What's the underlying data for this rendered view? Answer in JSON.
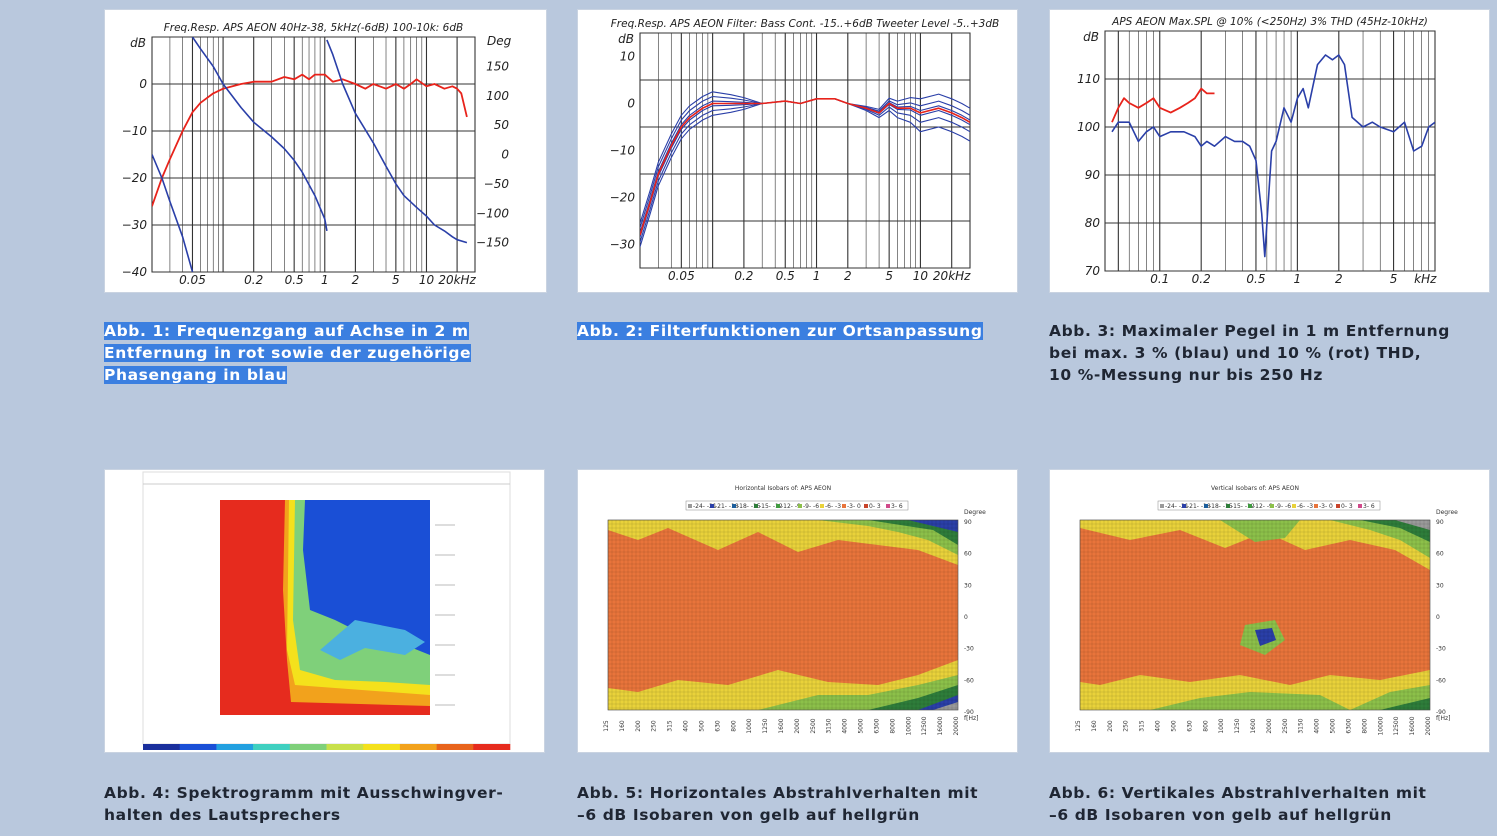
{
  "captions": {
    "fig1": "Abb. 1: Frequenzgang auf Achse in 2 m\nEntfernung in rot sowie der zugehörige\nPhasengang in blau",
    "fig2": "Abb. 2: Filterfunktionen zur Ortsanpassung",
    "fig3": "Abb. 3: Maximaler Pegel in 1 m Entfernung\nbei max. 3 % (blau) und 10 % (rot) THD,\n10 %-Messung nur bis 250 Hz",
    "fig4": "Abb. 4: Spektrogramm mit Ausschwingver-\nhalten des Lautsprechers",
    "fig5": "Abb. 5: Horizontales Abstrahlverhalten mit\n–6 dB Isobaren von gelb auf hellgrün",
    "fig6": "Abb. 6: Vertikales Abstrahlverhalten mit\n–6 dB Isobaren von gelb auf hellgrün"
  },
  "colors": {
    "page_background": "#b9c8dd",
    "caption_highlight": "#3b7fe0",
    "curve_red": "#e8231b",
    "curve_blue": "#2a3fa8"
  },
  "chart_data": [
    {
      "id": "fig1",
      "type": "line",
      "title": "Freq.Resp. APS AEON 40Hz-38, 5kHz(-6dB) 100-10k: 6dB",
      "ylabel": "dB",
      "y2label": "Deg",
      "xscale": "log",
      "xlim": [
        0.02,
        30
      ],
      "ylim": [
        -40,
        10
      ],
      "y2lim": [
        -200,
        200
      ],
      "x_ticks": [
        {
          "v": 0.05,
          "label": "0.05"
        },
        {
          "v": 0.2,
          "label": "0.2"
        },
        {
          "v": 0.5,
          "label": "0.5"
        },
        {
          "v": 1,
          "label": "1"
        },
        {
          "v": 2,
          "label": "2"
        },
        {
          "v": 5,
          "label": "5"
        },
        {
          "v": 10,
          "label": "10"
        },
        {
          "v": 20,
          "label": "20kHz"
        }
      ],
      "y_ticks": [
        0,
        -10,
        -20,
        -30,
        -40
      ],
      "y2_ticks": [
        150,
        100,
        50,
        0,
        -50,
        -100,
        -150
      ],
      "grid": true,
      "series": [
        {
          "axis": "left",
          "color": "#e8231b",
          "x": [
            0.02,
            0.025,
            0.03,
            0.04,
            0.05,
            0.06,
            0.08,
            0.1,
            0.15,
            0.2,
            0.3,
            0.4,
            0.5,
            0.6,
            0.7,
            0.8,
            1,
            1.2,
            1.5,
            2,
            2.5,
            3,
            4,
            5,
            6,
            7,
            8,
            10,
            12,
            15,
            18,
            20,
            22,
            25
          ],
          "y": [
            -26,
            -20,
            -16,
            -10,
            -6,
            -4,
            -2,
            -1,
            0,
            0.5,
            0.5,
            1.5,
            1,
            2,
            1,
            2,
            2,
            0.5,
            1,
            0,
            -1,
            0,
            -1,
            0,
            -1,
            0,
            1,
            -0.5,
            0,
            -1,
            -0.5,
            -1,
            -2,
            -7
          ]
        },
        {
          "axis": "right",
          "color": "#2a3fa8",
          "x": [
            0.05,
            0.06,
            0.08,
            0.1,
            0.15,
            0.2,
            0.3,
            0.4,
            0.5,
            0.6,
            0.8,
            1,
            1.05
          ],
          "y": [
            200,
            180,
            150,
            120,
            80,
            55,
            30,
            10,
            -10,
            -30,
            -70,
            -110,
            -130
          ]
        },
        {
          "axis": "right",
          "color": "#2a3fa8",
          "x": [
            1.05,
            1.2,
            1.5,
            2,
            3,
            4,
            5,
            6,
            8,
            10,
            12,
            15,
            18,
            20,
            25
          ],
          "y": [
            195,
            170,
            120,
            70,
            20,
            -20,
            -50,
            -70,
            -90,
            -105,
            -120,
            -130,
            -140,
            -145,
            -150
          ]
        },
        {
          "axis": "right",
          "color": "#2a3fa8",
          "x": [
            0.02,
            0.025,
            0.03,
            0.04,
            0.05
          ],
          "y": [
            0,
            -40,
            -80,
            -140,
            -200
          ]
        }
      ]
    },
    {
      "id": "fig2",
      "type": "line",
      "title": "Freq.Resp. APS AEON Filter: Bass Cont. -15..+6dB Tweeter Level -5..+3dB",
      "ylabel": "dB",
      "xscale": "log",
      "xlim": [
        0.02,
        30
      ],
      "ylim": [
        -35,
        15
      ],
      "x_ticks": [
        {
          "v": 0.05,
          "label": "0.05"
        },
        {
          "v": 0.2,
          "label": "0.2"
        },
        {
          "v": 0.5,
          "label": "0.5"
        },
        {
          "v": 1,
          "label": "1"
        },
        {
          "v": 2,
          "label": "2"
        },
        {
          "v": 5,
          "label": "5"
        },
        {
          "v": 10,
          "label": "10"
        },
        {
          "v": 20,
          "label": "20kHz"
        }
      ],
      "y_ticks": [
        10,
        0,
        -10,
        -20,
        -30
      ],
      "grid": true,
      "base": {
        "x": [
          0.02,
          0.025,
          0.03,
          0.04,
          0.05,
          0.06,
          0.08,
          0.1,
          0.15,
          0.2,
          0.3,
          0.5,
          0.7,
          1,
          1.5,
          2,
          3,
          4,
          5,
          6,
          8,
          10,
          15,
          20,
          25,
          30
        ],
        "y": [
          -28,
          -21,
          -15,
          -9,
          -5,
          -3,
          -1,
          0,
          0,
          0,
          0,
          0.5,
          0,
          1,
          1,
          0,
          -1,
          -2,
          0,
          -1,
          -1,
          -2,
          -1,
          -2,
          -3,
          -4
        ]
      },
      "bass_offsets": [
        -2.5,
        -1.5,
        -0.5,
        0.5,
        1.5,
        2.5
      ],
      "treble_offsets": [
        3,
        1.5,
        0.5,
        -0.5,
        -2,
        -4,
        -5
      ],
      "series": [
        {
          "name": "",
          "color": "#e8231b",
          "offset_bass": 0,
          "offset_treble": 0
        }
      ]
    },
    {
      "id": "fig3",
      "type": "line",
      "title": "APS AEON Max.SPL @ 10% (<250Hz) 3% THD (45Hz-10kHz)",
      "ylabel": "dB",
      "xscale": "log",
      "xlim": [
        0.04,
        10
      ],
      "ylim": [
        70,
        120
      ],
      "x_ticks": [
        {
          "v": 0.1,
          "label": "0.1"
        },
        {
          "v": 0.2,
          "label": "0.2"
        },
        {
          "v": 0.5,
          "label": "0.5"
        },
        {
          "v": 1,
          "label": "1"
        },
        {
          "v": 2,
          "label": "2"
        },
        {
          "v": 5,
          "label": "5"
        },
        {
          "v": 8.5,
          "label": "kHz"
        }
      ],
      "y_ticks": [
        110,
        100,
        90,
        80,
        70
      ],
      "grid": true,
      "series": [
        {
          "color": "#e8231b",
          "x": [
            0.045,
            0.05,
            0.055,
            0.06,
            0.07,
            0.08,
            0.09,
            0.1,
            0.12,
            0.14,
            0.16,
            0.18,
            0.2,
            0.22,
            0.25
          ],
          "y": [
            101,
            104,
            106,
            105,
            104,
            105,
            106,
            104,
            103,
            104,
            105,
            106,
            108,
            107,
            107
          ]
        },
        {
          "color": "#2a3fa8",
          "x": [
            0.045,
            0.05,
            0.06,
            0.07,
            0.08,
            0.09,
            0.1,
            0.12,
            0.15,
            0.18,
            0.2,
            0.22,
            0.25,
            0.3,
            0.35,
            0.4,
            0.45,
            0.5,
            0.55,
            0.58,
            0.6,
            0.65,
            0.7,
            0.8,
            0.9,
            1,
            1.1,
            1.2,
            1.4,
            1.6,
            1.8,
            2,
            2.2,
            2.5,
            3,
            3.5,
            4,
            5,
            6,
            7,
            8,
            9,
            10
          ],
          "y": [
            99,
            101,
            101,
            97,
            99,
            100,
            98,
            99,
            99,
            98,
            96,
            97,
            96,
            98,
            97,
            97,
            96,
            93,
            82,
            73,
            80,
            95,
            97,
            104,
            101,
            106,
            108,
            104,
            113,
            115,
            114,
            115,
            113,
            102,
            100,
            101,
            100,
            99,
            101,
            95,
            96,
            100,
            101
          ]
        }
      ]
    },
    {
      "id": "fig4",
      "type": "heatmap",
      "title": "",
      "description_colors": [
        "#e62b1e",
        "#f2a21c",
        "#f4e11c",
        "#7fd07a",
        "#1a4fd6"
      ]
    },
    {
      "id": "fig5",
      "type": "heatmap",
      "title": "Horizontal Isobars of: APS AEON",
      "legend": [
        "-24- -21",
        "-21- -18",
        "-18- -15",
        "-15- -12",
        "-12- -9",
        "-9- -6",
        "-6- -3",
        "-3- 0",
        "0- 3",
        "3- 6"
      ],
      "legend_colors": [
        "#9a9a9a",
        "#2a3fa8",
        "#1b5e9c",
        "#2e7d3a",
        "#3f9a3f",
        "#8cc04a",
        "#e9d23a",
        "#e8743b",
        "#c8432a",
        "#d04a8a"
      ],
      "ylabel": "Degree",
      "y_ticks": [
        90,
        60,
        30,
        0,
        -30,
        -60,
        -90
      ],
      "xlabel": "f[Hz]",
      "x_ticks": [
        "125",
        "160",
        "200",
        "250",
        "315",
        "400",
        "500",
        "630",
        "800",
        "1000",
        "1250",
        "1600",
        "2000",
        "2500",
        "3150",
        "4000",
        "5000",
        "6300",
        "8000",
        "10000",
        "12500",
        "16000",
        "20000"
      ]
    },
    {
      "id": "fig6",
      "type": "heatmap",
      "title": "Vertical Isobars of: APS AEON",
      "legend": [
        "-24- -21",
        "-21- -18",
        "-18- -15",
        "-15- -12",
        "-12- -9",
        "-9- -6",
        "-6- -3",
        "-3- 0",
        "0- 3",
        "3- 6"
      ],
      "legend_colors": [
        "#9a9a9a",
        "#2a3fa8",
        "#1b5e9c",
        "#2e7d3a",
        "#3f9a3f",
        "#8cc04a",
        "#e9d23a",
        "#e8743b",
        "#c8432a",
        "#d04a8a"
      ],
      "ylabel": "Degree",
      "y_ticks": [
        90,
        60,
        30,
        0,
        -30,
        -60,
        -90
      ],
      "xlabel": "f[Hz]",
      "x_ticks": [
        "125",
        "160",
        "200",
        "250",
        "315",
        "400",
        "500",
        "630",
        "800",
        "1000",
        "1250",
        "1600",
        "2000",
        "2500",
        "3150",
        "4000",
        "5000",
        "6300",
        "8000",
        "10000",
        "12500",
        "16000",
        "20000"
      ]
    }
  ]
}
